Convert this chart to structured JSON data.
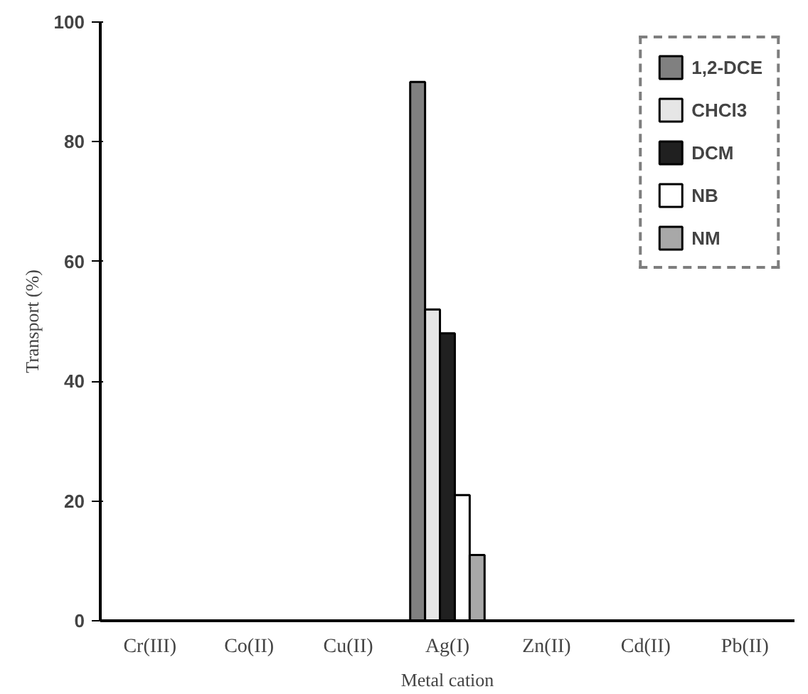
{
  "chart_data": {
    "type": "bar",
    "xlabel": "Metal cation",
    "ylabel": "Transport (%)",
    "categories": [
      "Cr(III)",
      "Co(II)",
      "Cu(II)",
      "Ag(I)",
      "Zn(II)",
      "Cd(II)",
      "Pb(II)"
    ],
    "series": [
      {
        "name": "1,2-DCE",
        "color": "#808080",
        "values": [
          0,
          0,
          0,
          90,
          0,
          0,
          0
        ]
      },
      {
        "name": "CHCl3",
        "color": "#e6e6e6",
        "values": [
          0,
          0,
          0,
          52,
          0,
          0,
          0
        ]
      },
      {
        "name": "DCM",
        "color": "#202020",
        "values": [
          0,
          0,
          0,
          48,
          0,
          0,
          0
        ]
      },
      {
        "name": "NB",
        "color": "#ffffff",
        "values": [
          0,
          0,
          0,
          21,
          0,
          0,
          0
        ]
      },
      {
        "name": "NM",
        "color": "#a8a8a8",
        "values": [
          0,
          0,
          0,
          11,
          0,
          0,
          0
        ]
      }
    ],
    "ylim": [
      0,
      100
    ],
    "yticks": [
      0,
      20,
      40,
      60,
      80,
      100
    ],
    "grid": false,
    "legend": "top right"
  }
}
